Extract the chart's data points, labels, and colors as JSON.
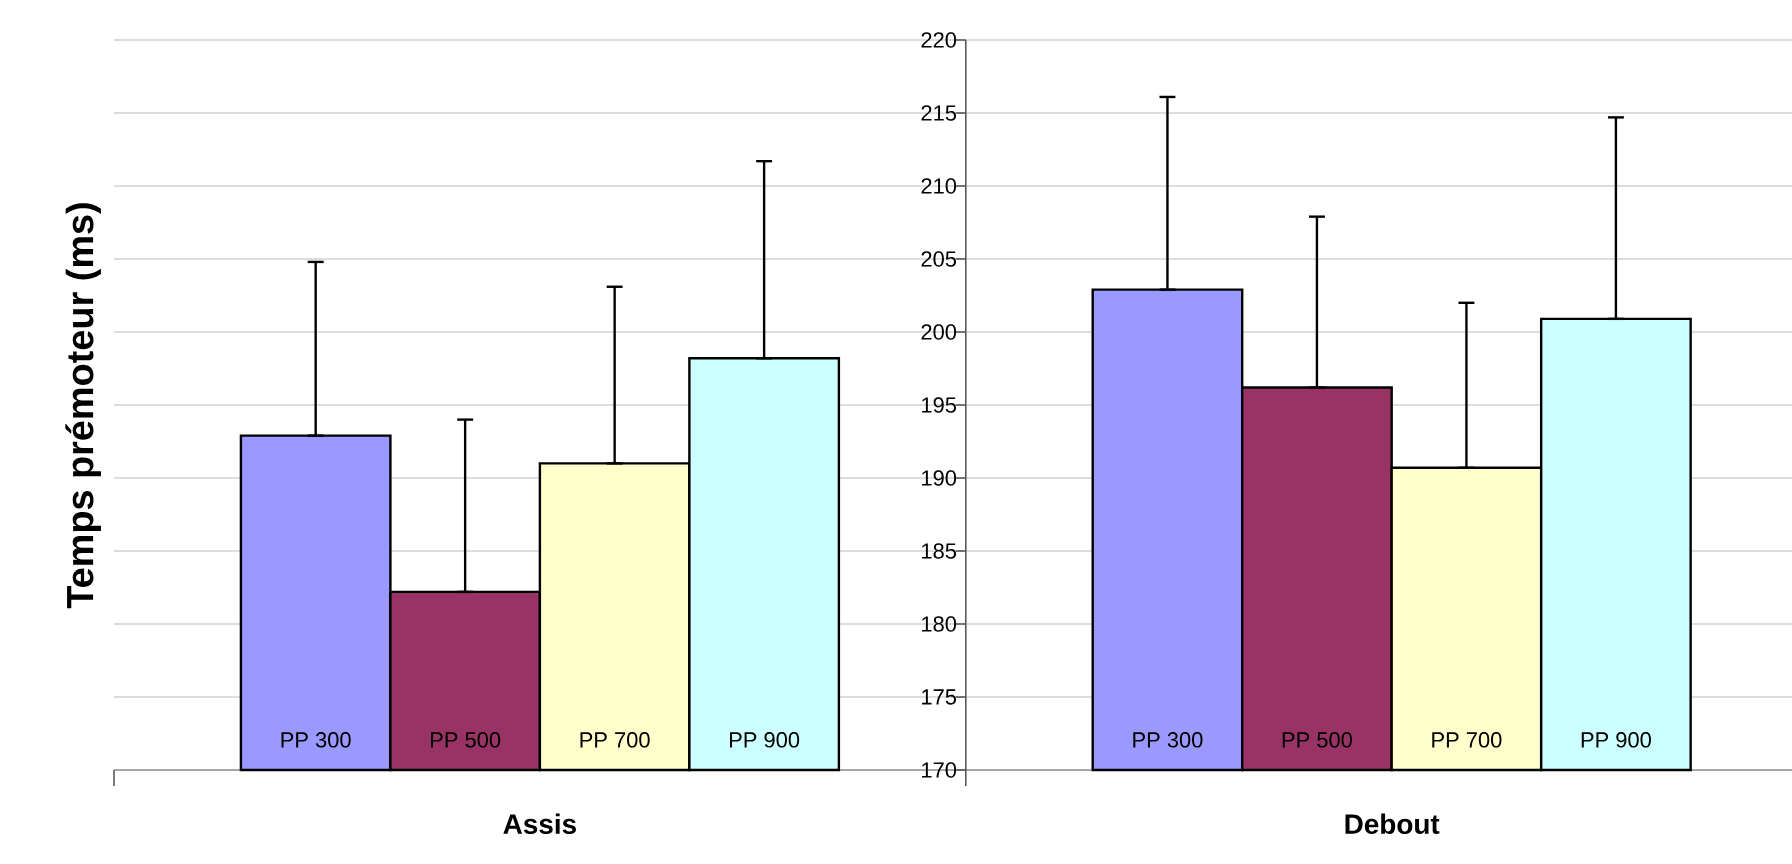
{
  "chart_data": {
    "type": "bar",
    "ylabel": "Temps prémoteur (ms)",
    "categories": [
      "Assis",
      "Debout"
    ],
    "series": [
      {
        "name": "PP 300",
        "color": "#9999ff",
        "values": [
          192.9,
          202.9
        ],
        "errors": [
          [
            192.9,
            204.8
          ],
          [
            202.9,
            216.1
          ]
        ]
      },
      {
        "name": "PP 500",
        "color": "#993366",
        "values": [
          182.2,
          196.2
        ],
        "errors": [
          [
            182.2,
            194.0
          ],
          [
            196.2,
            207.9
          ]
        ]
      },
      {
        "name": "PP 700",
        "color": "#ffffcc",
        "values": [
          191.0,
          190.7
        ],
        "errors": [
          [
            191.0,
            203.1
          ],
          [
            190.7,
            202.0
          ]
        ]
      },
      {
        "name": "PP 900",
        "color": "#ccffff",
        "values": [
          198.2,
          200.9
        ],
        "errors": [
          [
            198.2,
            211.7
          ],
          [
            200.9,
            214.7
          ]
        ]
      }
    ],
    "ylim": [
      170,
      220
    ],
    "yticks": [
      170,
      175,
      180,
      185,
      190,
      195,
      200,
      205,
      210,
      215,
      220
    ],
    "grid": "y"
  }
}
